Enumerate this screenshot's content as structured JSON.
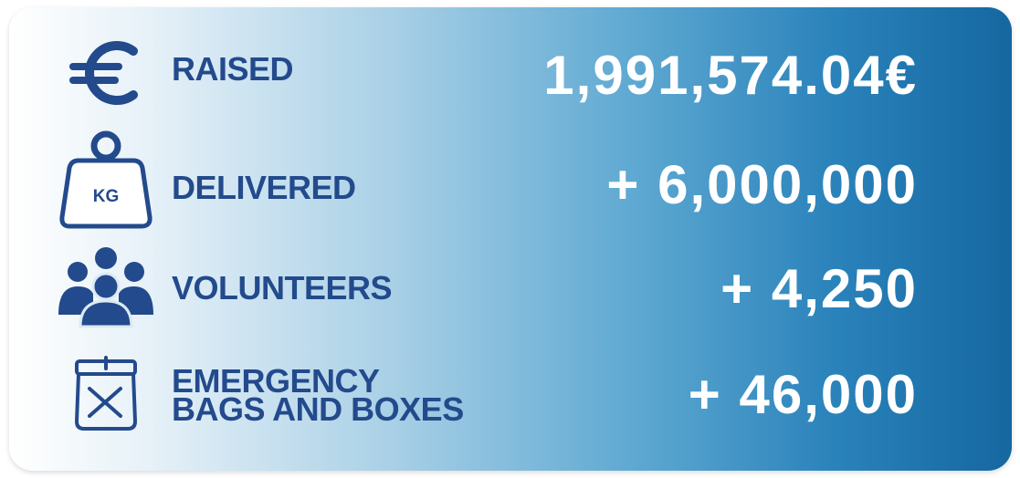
{
  "rows": [
    {
      "label": [
        "RAISED"
      ],
      "value": "1,991,574.04€"
    },
    {
      "label": [
        "DELIVERED"
      ],
      "value": "+ 6,000,000",
      "icon_text": "KG"
    },
    {
      "label": [
        "VOLUNTEERS"
      ],
      "value": "+ 4,250"
    },
    {
      "label": [
        "EMERGENCY",
        "BAGS AND BOXES"
      ],
      "value": "+ 46,000"
    }
  ]
}
